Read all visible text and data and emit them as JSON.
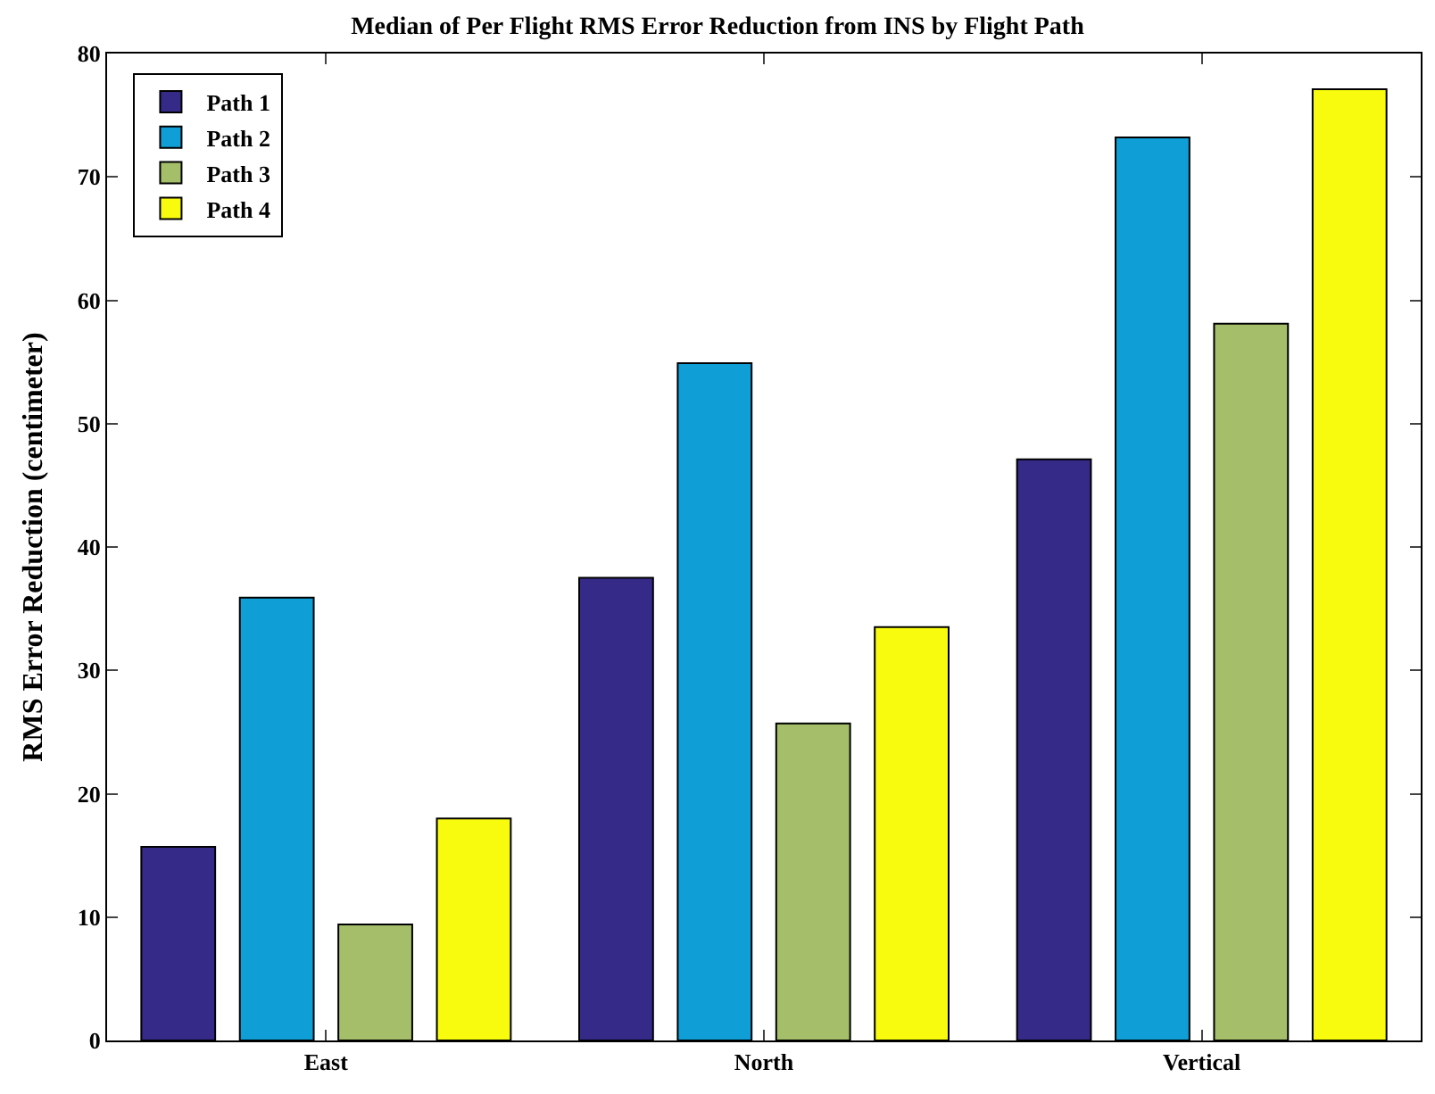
{
  "chart_data": {
    "type": "bar",
    "title": "Median of Per Flight RMS Error Reduction from INS by Flight Path",
    "ylabel": "RMS Error Reduction (centimeter)",
    "categories": [
      "East",
      "North",
      "Vertical"
    ],
    "series": [
      {
        "name": "Path 1",
        "color": "#352a87",
        "values": [
          15.7,
          37.5,
          47.1
        ]
      },
      {
        "name": "Path 2",
        "color": "#0f9fd6",
        "values": [
          35.9,
          54.9,
          73.2
        ]
      },
      {
        "name": "Path 3",
        "color": "#a5be6a",
        "values": [
          9.4,
          25.7,
          58.1
        ]
      },
      {
        "name": "Path 4",
        "color": "#f9fb0e",
        "values": [
          18.0,
          33.5,
          77.1
        ]
      }
    ],
    "ylim": [
      0,
      80
    ],
    "yticks": [
      0,
      10,
      20,
      30,
      40,
      50,
      60,
      70,
      80
    ],
    "legend": "top left"
  }
}
